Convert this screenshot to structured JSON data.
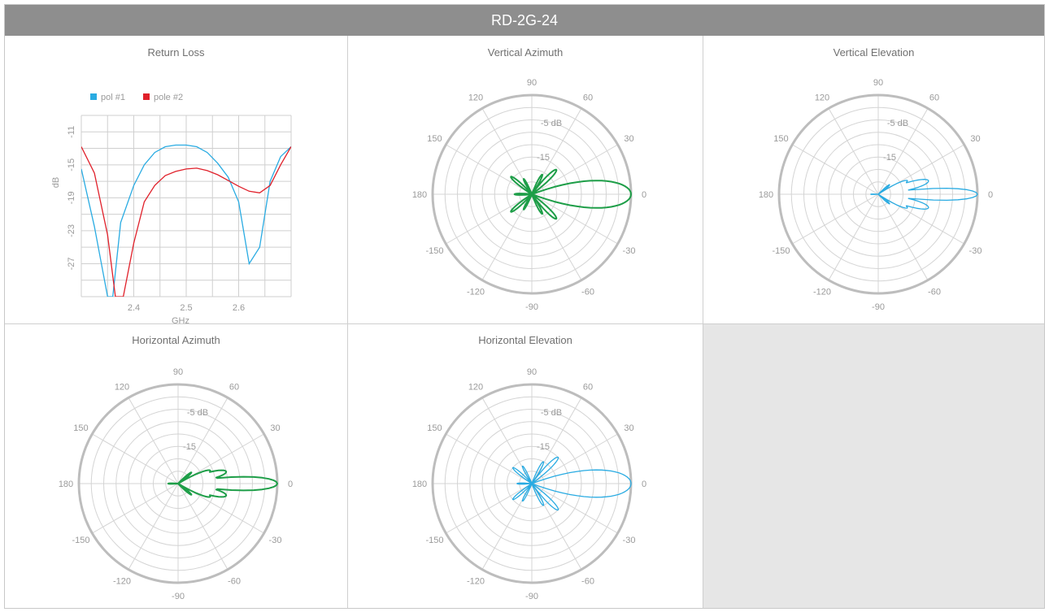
{
  "header": {
    "title": "RD-2G-24"
  },
  "colors": {
    "pol1": "#29abe2",
    "pol2": "#e0202a",
    "green": "#1e9e48",
    "blue": "#29abe2",
    "grid": "#cfcfcf",
    "ring": "#bdbdbd",
    "header_bg": "#8e8e8e"
  },
  "chart_data": [
    {
      "id": "return-loss",
      "type": "line",
      "title": "Return Loss",
      "xlabel": "GHz",
      "ylabel": "dB",
      "xlim": [
        2.3,
        2.7
      ],
      "ylim": [
        -31,
        -9
      ],
      "xticks": [
        "2.4",
        "2.5",
        "2.6"
      ],
      "xtick_values": [
        2.4,
        2.5,
        2.6
      ],
      "yticks": [
        "-11",
        "-15",
        "-19",
        "-23",
        "-27"
      ],
      "ytick_values": [
        -11,
        -15,
        -19,
        -23,
        -27
      ],
      "grid": true,
      "legend_position": "top-left",
      "series": [
        {
          "name": "pol #1",
          "color": "#29abe2",
          "x": [
            2.3,
            2.325,
            2.35,
            2.36,
            2.375,
            2.4,
            2.42,
            2.44,
            2.46,
            2.48,
            2.5,
            2.52,
            2.54,
            2.56,
            2.58,
            2.6,
            2.62,
            2.64,
            2.66,
            2.68,
            2.7
          ],
          "y": [
            -15.5,
            -22.5,
            -31,
            -31,
            -22,
            -17.5,
            -15,
            -13.5,
            -12.8,
            -12.6,
            -12.6,
            -12.8,
            -13.5,
            -14.8,
            -16.5,
            -19.5,
            -27,
            -25,
            -17,
            -14,
            -12.8
          ]
        },
        {
          "name": "pole #2",
          "color": "#e0202a",
          "x": [
            2.3,
            2.325,
            2.35,
            2.365,
            2.38,
            2.4,
            2.42,
            2.44,
            2.46,
            2.48,
            2.5,
            2.52,
            2.54,
            2.56,
            2.58,
            2.6,
            2.62,
            2.64,
            2.66,
            2.68,
            2.7
          ],
          "y": [
            -12.8,
            -16,
            -23.5,
            -31,
            -31,
            -24.5,
            -19.5,
            -17.5,
            -16.3,
            -15.8,
            -15.5,
            -15.4,
            -15.7,
            -16.2,
            -16.9,
            -17.6,
            -18.2,
            -18.4,
            -17.5,
            -15,
            -12.8
          ]
        }
      ]
    },
    {
      "id": "vertical-azimuth",
      "type": "polar",
      "title": "Vertical Azimuth",
      "color": "#1e9e48",
      "stroke_width": "thick",
      "ring_labels": [
        "-5 dB",
        "-15"
      ],
      "angle_labels": [
        "0",
        "30",
        "60",
        "90",
        "120",
        "150",
        "180",
        "-150",
        "-120",
        "-90",
        "-60",
        "-30"
      ],
      "r_range_db": [
        -40,
        0
      ],
      "pattern": {
        "main_gain_db": 0,
        "main_width_deg": 8,
        "side_angles": [
          45,
          62,
          118,
          140,
          180,
          -140,
          -118,
          -62,
          -45
        ],
        "side_levels_db": [
          -26,
          -31,
          -33,
          -29,
          -33,
          -29,
          -33,
          -31,
          -26
        ]
      }
    },
    {
      "id": "vertical-elevation",
      "type": "polar",
      "title": "Vertical Elevation",
      "color": "#29abe2",
      "stroke_width": "thin",
      "ring_labels": [
        "-5 dB",
        "-15"
      ],
      "angle_labels": [
        "0",
        "30",
        "60",
        "90",
        "120",
        "150",
        "180",
        "-150",
        "-120",
        "-90",
        "-60",
        "-30"
      ],
      "r_range_db": [
        -40,
        0
      ],
      "pattern": {
        "main_gain_db": 0,
        "main_width_deg": 3.5,
        "side_angles": [
          15,
          25,
          40,
          180,
          -40,
          -25,
          -15
        ],
        "side_levels_db": [
          -19,
          -27,
          -34,
          -37,
          -34,
          -27,
          -19
        ]
      }
    },
    {
      "id": "horizontal-azimuth",
      "type": "polar",
      "title": "Horizontal Azimuth",
      "color": "#1e9e48",
      "stroke_width": "thick",
      "ring_labels": [
        "-5 dB",
        "-15"
      ],
      "angle_labels": [
        "0",
        "30",
        "60",
        "90",
        "120",
        "150",
        "180",
        "-150",
        "-120",
        "-90",
        "-60",
        "-30"
      ],
      "r_range_db": [
        -40,
        0
      ],
      "pattern": {
        "main_gain_db": 0,
        "main_width_deg": 4,
        "side_angles": [
          14,
          22,
          40,
          180,
          -40,
          -22,
          -14
        ],
        "side_levels_db": [
          -20,
          -26,
          -33,
          -36,
          -33,
          -26,
          -20
        ]
      }
    },
    {
      "id": "horizontal-elevation",
      "type": "polar",
      "title": "Horizontal Elevation",
      "color": "#29abe2",
      "stroke_width": "thin",
      "ring_labels": [
        "-5 dB",
        "-15"
      ],
      "angle_labels": [
        "0",
        "30",
        "60",
        "90",
        "120",
        "150",
        "180",
        "-150",
        "-120",
        "-90",
        "-60",
        "-30"
      ],
      "r_range_db": [
        -40,
        0
      ],
      "pattern": {
        "main_gain_db": 0,
        "main_width_deg": 8,
        "side_angles": [
          45,
          62,
          118,
          140,
          180,
          -140,
          -118,
          -62,
          -45
        ],
        "side_levels_db": [
          -25,
          -30,
          -32,
          -30,
          -34,
          -30,
          -32,
          -30,
          -25
        ]
      }
    }
  ]
}
